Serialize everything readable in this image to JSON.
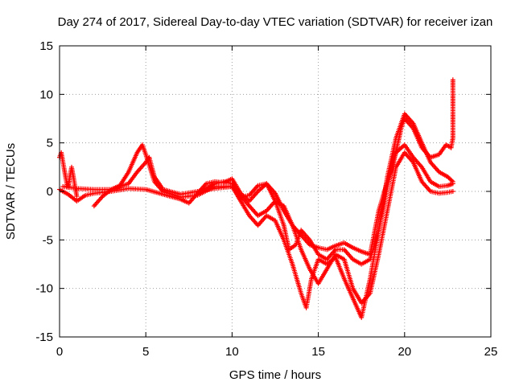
{
  "chart_data": {
    "type": "scatter",
    "title": "Day 274 of 2017, Sidereal Day-to-day VTEC variation (SDTVAR) for receiver izan",
    "xlabel": "GPS time / hours",
    "ylabel": "SDTVAR / TECUs",
    "xlim": [
      0,
      25
    ],
    "ylim": [
      -15,
      15
    ],
    "xticks": [
      0,
      5,
      10,
      15,
      20,
      25
    ],
    "yticks": [
      -15,
      -10,
      -5,
      0,
      5,
      10,
      15
    ],
    "grid": true,
    "marker": "+",
    "color": "#ff0000",
    "series": [
      {
        "name": "track-1",
        "points": [
          [
            0.0,
            0.2
          ],
          [
            0.5,
            -0.3
          ],
          [
            1.0,
            -1.0
          ],
          [
            1.5,
            -0.4
          ],
          [
            2.0,
            -0.2
          ],
          [
            3.0,
            0.0
          ],
          [
            4.0,
            0.3
          ],
          [
            5.0,
            0.2
          ],
          [
            6.0,
            -0.3
          ],
          [
            7.0,
            -0.8
          ],
          [
            7.5,
            -1.2
          ],
          [
            8.0,
            -0.2
          ],
          [
            9.0,
            0.8
          ],
          [
            9.5,
            1.0
          ],
          [
            10.0,
            0.8
          ],
          [
            10.5,
            -0.6
          ],
          [
            11.0,
            -0.4
          ],
          [
            11.5,
            0.6
          ],
          [
            12.0,
            0.8
          ],
          [
            12.5,
            -0.2
          ],
          [
            13.0,
            -2.0
          ],
          [
            13.5,
            -3.5
          ],
          [
            14.0,
            -4.5
          ],
          [
            14.5,
            -5.5
          ],
          [
            15.0,
            -5.8
          ],
          [
            15.5,
            -6.0
          ],
          [
            16.0,
            -5.6
          ],
          [
            16.5,
            -5.3
          ],
          [
            17.0,
            -5.8
          ],
          [
            17.5,
            -6.2
          ],
          [
            18.0,
            -6.5
          ],
          [
            18.5,
            -2.0
          ],
          [
            19.0,
            1.0
          ],
          [
            19.5,
            4.0
          ],
          [
            20.0,
            4.8
          ],
          [
            20.5,
            3.5
          ],
          [
            21.0,
            2.5
          ],
          [
            21.5,
            1.0
          ],
          [
            22.0,
            0.5
          ],
          [
            22.5,
            0.6
          ],
          [
            22.8,
            0.8
          ]
        ]
      },
      {
        "name": "track-2",
        "points": [
          [
            2.0,
            -1.5
          ],
          [
            2.5,
            -0.5
          ],
          [
            3.0,
            0.2
          ],
          [
            3.5,
            0.6
          ],
          [
            4.0,
            2.0
          ],
          [
            4.5,
            4.0
          ],
          [
            4.8,
            4.8
          ],
          [
            5.0,
            3.8
          ],
          [
            5.5,
            1.0
          ],
          [
            6.0,
            0.0
          ],
          [
            7.0,
            -0.6
          ],
          [
            8.0,
            -0.4
          ],
          [
            9.0,
            0.5
          ],
          [
            10.0,
            0.5
          ],
          [
            10.5,
            -0.5
          ],
          [
            11.0,
            -1.5
          ],
          [
            11.5,
            -2.5
          ],
          [
            12.0,
            -2.0
          ],
          [
            12.5,
            -1.0
          ],
          [
            13.0,
            -1.5
          ],
          [
            13.5,
            -3.5
          ],
          [
            14.0,
            -6.0
          ],
          [
            14.5,
            -8.0
          ],
          [
            15.0,
            -9.5
          ],
          [
            15.5,
            -8.0
          ],
          [
            16.0,
            -6.5
          ],
          [
            16.5,
            -7.0
          ],
          [
            17.0,
            -10.0
          ],
          [
            17.5,
            -11.5
          ],
          [
            18.0,
            -10.5
          ],
          [
            18.5,
            -6.5
          ],
          [
            19.0,
            -2.0
          ],
          [
            19.5,
            2.5
          ],
          [
            20.0,
            4.0
          ],
          [
            20.5,
            3.0
          ],
          [
            21.0,
            1.0
          ],
          [
            21.5,
            0.0
          ],
          [
            22.0,
            -0.2
          ],
          [
            22.5,
            -0.1
          ],
          [
            22.8,
            0.0
          ]
        ]
      },
      {
        "name": "track-3",
        "points": [
          [
            0.2,
            0.5
          ],
          [
            1.0,
            0.3
          ],
          [
            2.0,
            0.2
          ],
          [
            3.0,
            0.2
          ],
          [
            4.0,
            0.8
          ],
          [
            4.5,
            2.0
          ],
          [
            5.0,
            3.0
          ],
          [
            5.2,
            3.5
          ],
          [
            5.5,
            1.5
          ],
          [
            6.0,
            0.2
          ],
          [
            7.0,
            -0.3
          ],
          [
            8.0,
            0.0
          ],
          [
            9.0,
            0.3
          ],
          [
            10.0,
            0.5
          ],
          [
            10.5,
            -1.0
          ],
          [
            11.0,
            -2.5
          ],
          [
            11.5,
            -3.5
          ],
          [
            12.0,
            -2.5
          ],
          [
            12.5,
            -3.0
          ],
          [
            13.0,
            -5.0
          ],
          [
            13.5,
            -7.5
          ],
          [
            14.0,
            -10.5
          ],
          [
            14.3,
            -12.0
          ],
          [
            14.6,
            -9.0
          ],
          [
            15.0,
            -7.0
          ],
          [
            15.5,
            -7.5
          ],
          [
            16.0,
            -6.8
          ],
          [
            16.5,
            -9.0
          ],
          [
            17.0,
            -11.0
          ],
          [
            17.5,
            -13.0
          ],
          [
            18.0,
            -9.0
          ],
          [
            18.5,
            -4.0
          ],
          [
            19.0,
            1.5
          ],
          [
            19.5,
            5.5
          ],
          [
            20.0,
            8.0
          ],
          [
            20.5,
            7.0
          ],
          [
            21.0,
            5.0
          ],
          [
            21.5,
            3.0
          ],
          [
            22.0,
            2.0
          ],
          [
            22.5,
            1.5
          ],
          [
            22.8,
            1.0
          ]
        ]
      },
      {
        "name": "track-4",
        "points": [
          [
            8.0,
            -0.2
          ],
          [
            8.5,
            0.8
          ],
          [
            9.0,
            1.0
          ],
          [
            9.5,
            0.9
          ],
          [
            10.0,
            1.3
          ],
          [
            10.5,
            -0.2
          ],
          [
            11.0,
            -1.0
          ],
          [
            11.5,
            0.0
          ],
          [
            12.0,
            0.8
          ],
          [
            12.5,
            -1.0
          ],
          [
            13.0,
            -3.5
          ],
          [
            13.3,
            -6.0
          ],
          [
            13.7,
            -5.5
          ],
          [
            14.0,
            -4.0
          ],
          [
            14.5,
            -5.0
          ],
          [
            15.0,
            -6.5
          ],
          [
            15.5,
            -7.0
          ],
          [
            16.0,
            -6.0
          ],
          [
            16.5,
            -6.0
          ],
          [
            17.0,
            -7.0
          ],
          [
            17.5,
            -7.5
          ],
          [
            18.0,
            -7.0
          ],
          [
            18.5,
            -4.0
          ],
          [
            19.0,
            0.5
          ],
          [
            19.5,
            4.0
          ],
          [
            19.8,
            6.5
          ],
          [
            20.0,
            7.5
          ],
          [
            20.5,
            6.5
          ],
          [
            21.0,
            4.5
          ],
          [
            21.5,
            3.5
          ],
          [
            22.0,
            3.8
          ],
          [
            22.4,
            4.8
          ],
          [
            22.7,
            4.5
          ],
          [
            22.8,
            5.5
          ],
          [
            22.8,
            7.0
          ],
          [
            22.8,
            8.5
          ],
          [
            22.8,
            10.0
          ],
          [
            22.8,
            11.5
          ]
        ]
      },
      {
        "name": "track-5",
        "points": [
          [
            0.0,
            3.5
          ],
          [
            0.1,
            4.0
          ],
          [
            0.2,
            3.0
          ],
          [
            0.3,
            2.0
          ],
          [
            0.4,
            1.0
          ],
          [
            0.5,
            0.4
          ],
          [
            0.6,
            1.5
          ],
          [
            0.7,
            2.5
          ],
          [
            0.8,
            1.5
          ],
          [
            0.9,
            0.5
          ],
          [
            1.0,
            -0.5
          ]
        ]
      }
    ]
  }
}
